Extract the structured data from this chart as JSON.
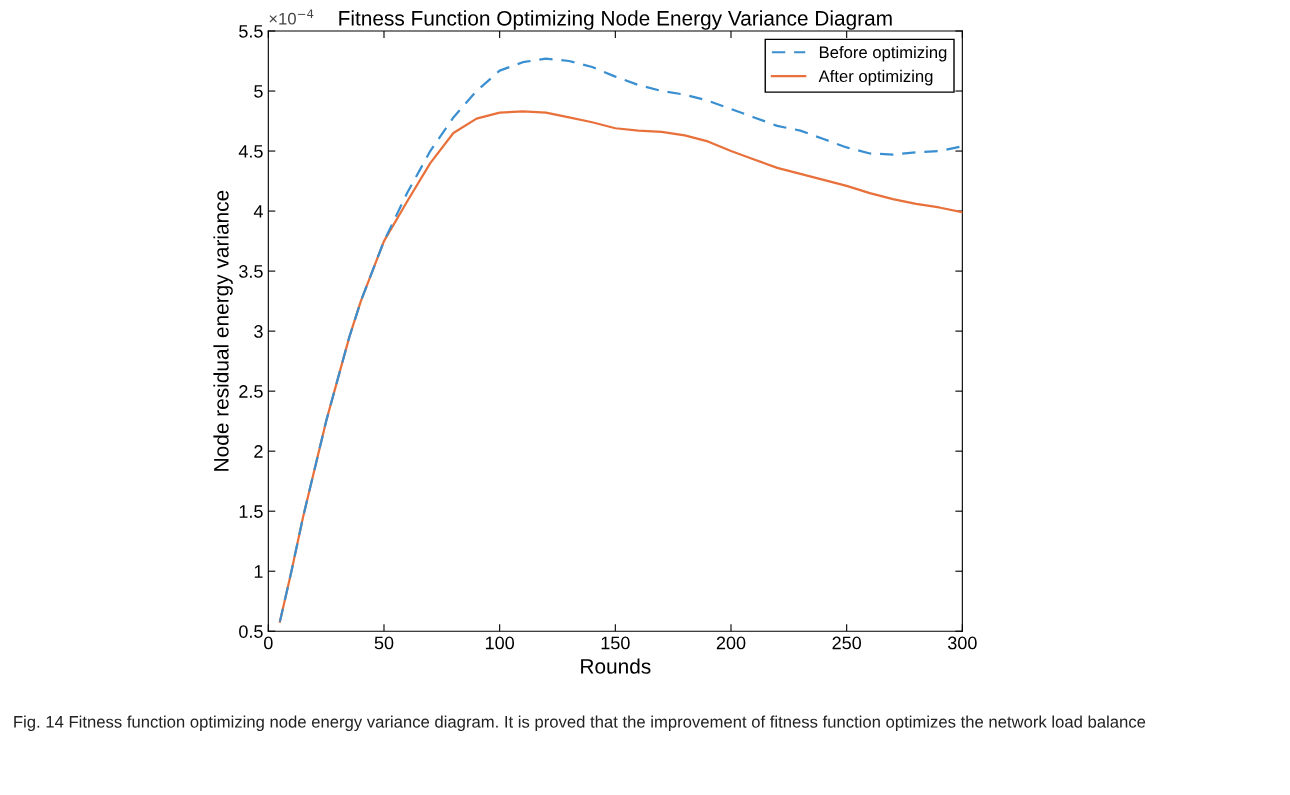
{
  "chart_data": {
    "type": "line",
    "title": "Fitness Function Optimizing Node Energy Variance Diagram",
    "xlabel": "Rounds",
    "ylabel": "Node residual energy variance",
    "annotations": [
      "×10$^{−4}$",
      "Fig. 14 Fitness function optimizing node energy variance diagram. It is proved that the improvement of fitness function optimizes the network load balance"
    ],
    "x": [
      5,
      10,
      15,
      20,
      25,
      30,
      35,
      40,
      45,
      50,
      60,
      70,
      80,
      90,
      100,
      110,
      120,
      130,
      140,
      150,
      160,
      170,
      180,
      190,
      200,
      210,
      220,
      230,
      240,
      250,
      260,
      270,
      280,
      290,
      300
    ],
    "series": [
      {
        "name": "Before optimizing",
        "color": "#3a8fd0",
        "line_style": "dashed",
        "values": [
          0.58,
          1.0,
          1.45,
          1.85,
          2.25,
          2.6,
          2.95,
          3.25,
          3.5,
          3.75,
          4.15,
          4.5,
          4.78,
          5.0,
          5.17,
          5.24,
          5.27,
          5.25,
          5.2,
          5.12,
          5.05,
          5.0,
          4.97,
          4.92,
          4.85,
          4.78,
          4.71,
          4.67,
          4.6,
          4.53,
          4.48,
          4.47,
          4.49,
          4.5,
          4.54
        ]
      },
      {
        "name": "After optimizing",
        "color": "#e8703a",
        "line_style": "solid",
        "values": [
          0.58,
          1.0,
          1.45,
          1.85,
          2.25,
          2.6,
          2.95,
          3.25,
          3.5,
          3.75,
          4.08,
          4.4,
          4.65,
          4.77,
          4.82,
          4.83,
          4.82,
          4.78,
          4.74,
          4.69,
          4.67,
          4.66,
          4.63,
          4.58,
          4.5,
          4.43,
          4.36,
          4.31,
          4.26,
          4.21,
          4.15,
          4.1,
          4.06,
          4.03,
          3.99
        ]
      }
    ],
    "xlim": [
      0,
      300
    ],
    "xticks": [
      0,
      50,
      100,
      150,
      200,
      250,
      300
    ],
    "ylim": [
      0.5,
      5.5
    ],
    "yticks": [
      0.5,
      1,
      1.5,
      2,
      2.5,
      3,
      3.5,
      4,
      4.5,
      5,
      5.5
    ],
    "grid": false,
    "legend": "top right",
    "marker": "none"
  }
}
